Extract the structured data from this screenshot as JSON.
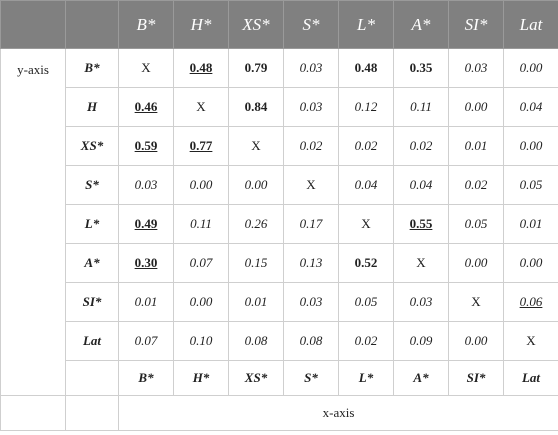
{
  "table": {
    "columns": [
      "B*",
      "H*",
      "XS*",
      "S*",
      "L*",
      "A*",
      "SI*",
      "Lat"
    ],
    "y_axis_label": "y-axis",
    "x_axis_label": "x-axis",
    "rows": [
      {
        "label": "B*",
        "cells": [
          "X",
          "0.48",
          "0.79",
          "0.03",
          "0.48",
          "0.35",
          "0.03",
          "0.00"
        ],
        "styles": [
          "plain",
          "bold-underline",
          "bold",
          "italic",
          "bold",
          "bold",
          "italic",
          "italic"
        ]
      },
      {
        "label": "H",
        "cells": [
          "0.46",
          "X",
          "0.84",
          "0.03",
          "0.12",
          "0.11",
          "0.00",
          "0.04"
        ],
        "styles": [
          "bold-underline",
          "plain",
          "bold",
          "italic",
          "italic",
          "italic",
          "italic",
          "italic"
        ]
      },
      {
        "label": "XS*",
        "cells": [
          "0.59",
          "0.77",
          "X",
          "0.02",
          "0.02",
          "0.02",
          "0.01",
          "0.00"
        ],
        "styles": [
          "bold-underline",
          "bold-underline",
          "plain",
          "italic",
          "italic",
          "italic",
          "italic",
          "italic"
        ]
      },
      {
        "label": "S*",
        "cells": [
          "0.03",
          "0.00",
          "0.00",
          "X",
          "0.04",
          "0.04",
          "0.02",
          "0.05"
        ],
        "styles": [
          "italic",
          "italic",
          "italic",
          "plain",
          "italic",
          "italic",
          "italic",
          "italic"
        ]
      },
      {
        "label": "L*",
        "cells": [
          "0.49",
          "0.11",
          "0.26",
          "0.17",
          "X",
          "0.55",
          "0.05",
          "0.01"
        ],
        "styles": [
          "bold-underline",
          "italic",
          "italic",
          "italic",
          "plain",
          "bold-underline",
          "italic",
          "italic"
        ]
      },
      {
        "label": "A*",
        "cells": [
          "0.30",
          "0.07",
          "0.15",
          "0.13",
          "0.52",
          "X",
          "0.00",
          "0.00"
        ],
        "styles": [
          "bold-underline",
          "italic",
          "italic",
          "italic",
          "bold",
          "plain",
          "italic",
          "italic"
        ]
      },
      {
        "label": "SI*",
        "cells": [
          "0.01",
          "0.00",
          "0.01",
          "0.03",
          "0.05",
          "0.03",
          "X",
          "0.06"
        ],
        "styles": [
          "italic",
          "italic",
          "italic",
          "italic",
          "italic",
          "italic",
          "plain",
          "italic-underline"
        ]
      },
      {
        "label": "Lat",
        "cells": [
          "0.07",
          "0.10",
          "0.08",
          "0.08",
          "0.02",
          "0.09",
          "0.00",
          "X"
        ],
        "styles": [
          "italic",
          "italic",
          "italic",
          "italic",
          "italic",
          "italic",
          "italic",
          "plain"
        ]
      }
    ],
    "footer": [
      "B*",
      "H*",
      "XS*",
      "S*",
      "L*",
      "A*",
      "SI*",
      "Lat"
    ]
  }
}
